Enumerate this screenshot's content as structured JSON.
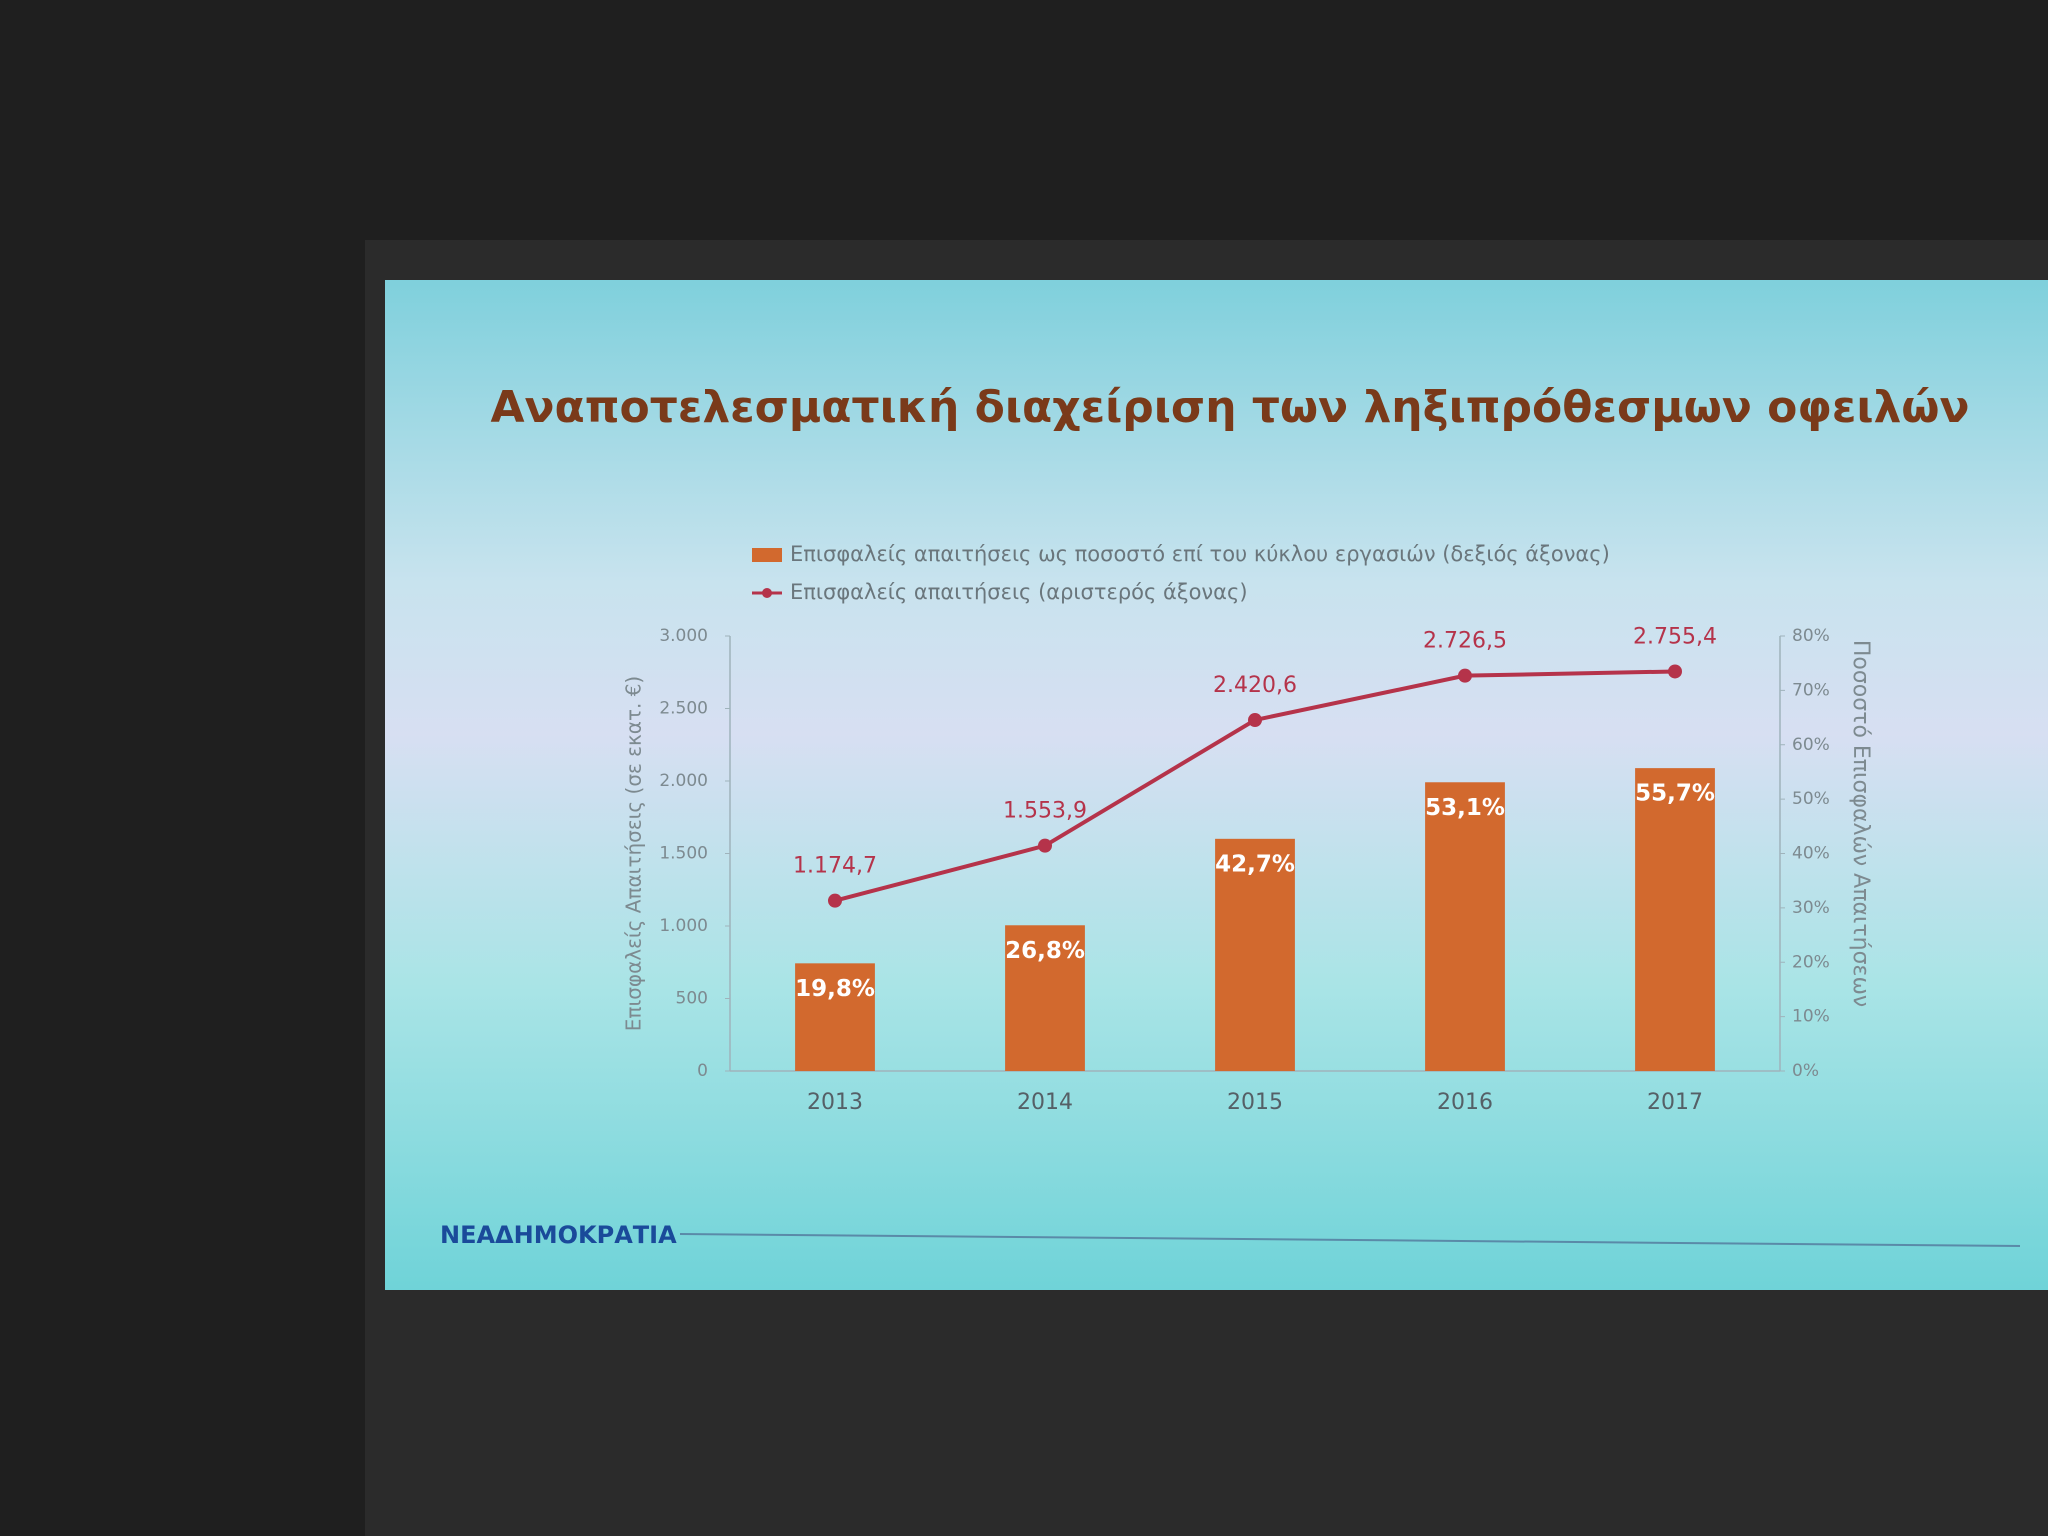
{
  "chart_data": {
    "type": "combo",
    "title": "Αναποτελεσματική διαχείριση των ληξιπρόθεσμων οφειλών",
    "categories": [
      "2013",
      "2014",
      "2015",
      "2016",
      "2017"
    ],
    "series": [
      {
        "name": "Επισφαλείς απαιτήσεις ως ποσοστό επί του κύκλου εργασιών (δεξιός άξονας)",
        "type": "bar",
        "axis": "y2",
        "color": "#d2692e",
        "values": [
          19.8,
          26.8,
          42.7,
          53.1,
          55.7
        ],
        "value_labels": [
          "19,8%",
          "26,8%",
          "42,7%",
          "53,1%",
          "55,7%"
        ]
      },
      {
        "name": "Επισφαλείς απαιτήσεις (αριστερός άξονας)",
        "type": "line",
        "color": "#b5334a",
        "values": [
          1174.7,
          1553.9,
          2420.6,
          2726.5,
          2755.4
        ],
        "value_labels": [
          "1.174,7",
          "1.553,9",
          "2.420,6",
          "2.726,5",
          "2.755,4"
        ]
      }
    ],
    "ylabel": "Επισφαλείς Απαιτήσεις (σε εκατ. €)",
    "y2label": "Ποσοστό Επισφαλών Απαιτήσεων",
    "ylim": [
      0,
      3000
    ],
    "yticks": [
      0,
      500,
      {
        "value": 1000,
        "label": "1.000"
      },
      {
        "value": 1500,
        "label": "1.500"
      },
      {
        "value": 2000,
        "label": "2.000"
      },
      {
        "value": 2500,
        "label": "2.500"
      },
      {
        "value": 3000,
        "label": "3.000"
      }
    ],
    "y2lim": [
      0,
      80
    ],
    "y2ticks": [
      {
        "value": 0,
        "label": "0%"
      },
      {
        "value": 10,
        "label": "10%"
      },
      {
        "value": 20,
        "label": "20%"
      },
      {
        "value": 30,
        "label": "30%"
      },
      {
        "value": 40,
        "label": "40%"
      },
      {
        "value": 50,
        "label": "50%"
      },
      {
        "value": 60,
        "label": "60%"
      },
      {
        "value": 70,
        "label": "70%"
      },
      {
        "value": 80,
        "label": "80%"
      }
    ],
    "legend": "top"
  },
  "footer": {
    "logo": "ΝΕΑΔΗΜΟΚΡΑΤΙΑ"
  }
}
